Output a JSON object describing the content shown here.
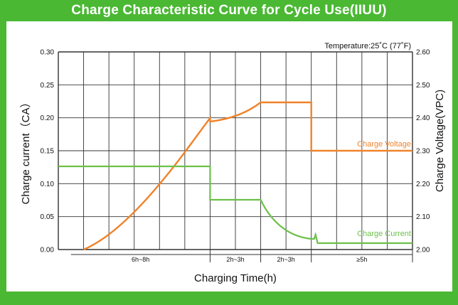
{
  "chart_data": {
    "type": "line",
    "title": "Charge Characteristic Curve for Cycle Use(IIUU)",
    "annotation": "Temperature:25˚C (77˚F)",
    "xlabel": "Charging Time(h)",
    "ylabel_left": "Charge current（CA）",
    "ylabel_right": "Charge Voltage(VPC)",
    "ylim_left": [
      0,
      0.3
    ],
    "ylim_right": [
      2.0,
      2.6
    ],
    "y_left_ticks": [
      "0.00",
      "0.05",
      "0.10",
      "0.15",
      "0.20",
      "0.25",
      "0.30"
    ],
    "y_right_ticks": [
      "2.00",
      "2.10",
      "2.20",
      "2.30",
      "2.40",
      "2.50",
      "2.60"
    ],
    "grid": true,
    "x_segments": [
      "6h~8h",
      "2h~3h",
      "2h~3h",
      "≥5h"
    ],
    "series": [
      {
        "name": "Charge Voltage",
        "color": "#f0832a",
        "axis": "right"
      },
      {
        "name": "Charge Current",
        "color": "#6cc04a",
        "axis": "left"
      }
    ]
  }
}
